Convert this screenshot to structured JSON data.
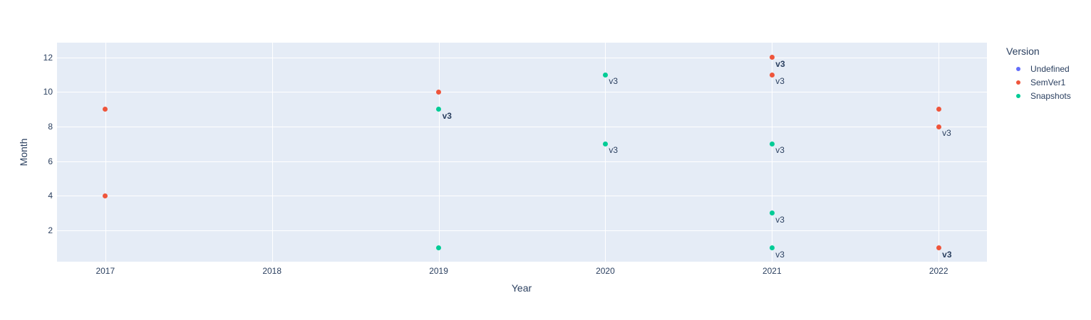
{
  "figure": {
    "background": "#ffffff",
    "plot_background": "#E5ECF6",
    "grid_color": "#ffffff",
    "text_color": "#2a3f5f"
  },
  "chart_data": {
    "type": "scatter",
    "title": "",
    "xlabel": "Year",
    "ylabel": "Month",
    "x_ticks": [
      "2017",
      "2018",
      "2019",
      "2020",
      "2021",
      "2022"
    ],
    "y_ticks": [
      "2",
      "4",
      "6",
      "8",
      "10",
      "12"
    ],
    "x_range": [
      2016.71,
      2022.29
    ],
    "y_range": [
      0.2,
      12.85
    ],
    "grid": true,
    "legend": {
      "title": "Version",
      "position": "right",
      "items": [
        {
          "label": "Undefined",
          "color": "#636EFA"
        },
        {
          "label": "SemVer1",
          "color": "#EF553B"
        },
        {
          "label": "Snapshots",
          "color": "#00CC96"
        }
      ]
    },
    "series": [
      {
        "name": "Undefined",
        "color": "#636EFA",
        "points": []
      },
      {
        "name": "SemVer1",
        "color": "#EF553B",
        "points": [
          {
            "x": 2017,
            "y": 9,
            "label": "",
            "bold": false
          },
          {
            "x": 2017,
            "y": 4,
            "label": "",
            "bold": false
          },
          {
            "x": 2019,
            "y": 10,
            "label": "",
            "bold": false
          },
          {
            "x": 2021,
            "y": 12,
            "label": "v3",
            "bold": true
          },
          {
            "x": 2021,
            "y": 11,
            "label": "v3",
            "bold": false
          },
          {
            "x": 2022,
            "y": 9,
            "label": "",
            "bold": false
          },
          {
            "x": 2022,
            "y": 8,
            "label": "v3",
            "bold": false
          },
          {
            "x": 2022,
            "y": 1,
            "label": "v3",
            "bold": true
          }
        ]
      },
      {
        "name": "Snapshots",
        "color": "#00CC96",
        "points": [
          {
            "x": 2019,
            "y": 9,
            "label": "v3",
            "bold": true
          },
          {
            "x": 2019,
            "y": 1,
            "label": "",
            "bold": false
          },
          {
            "x": 2020,
            "y": 11,
            "label": "v3",
            "bold": false
          },
          {
            "x": 2020,
            "y": 7,
            "label": "v3",
            "bold": false
          },
          {
            "x": 2021,
            "y": 7,
            "label": "v3",
            "bold": false
          },
          {
            "x": 2021,
            "y": 3,
            "label": "v3",
            "bold": false
          },
          {
            "x": 2021,
            "y": 1,
            "label": "v3",
            "bold": false
          }
        ]
      }
    ]
  }
}
